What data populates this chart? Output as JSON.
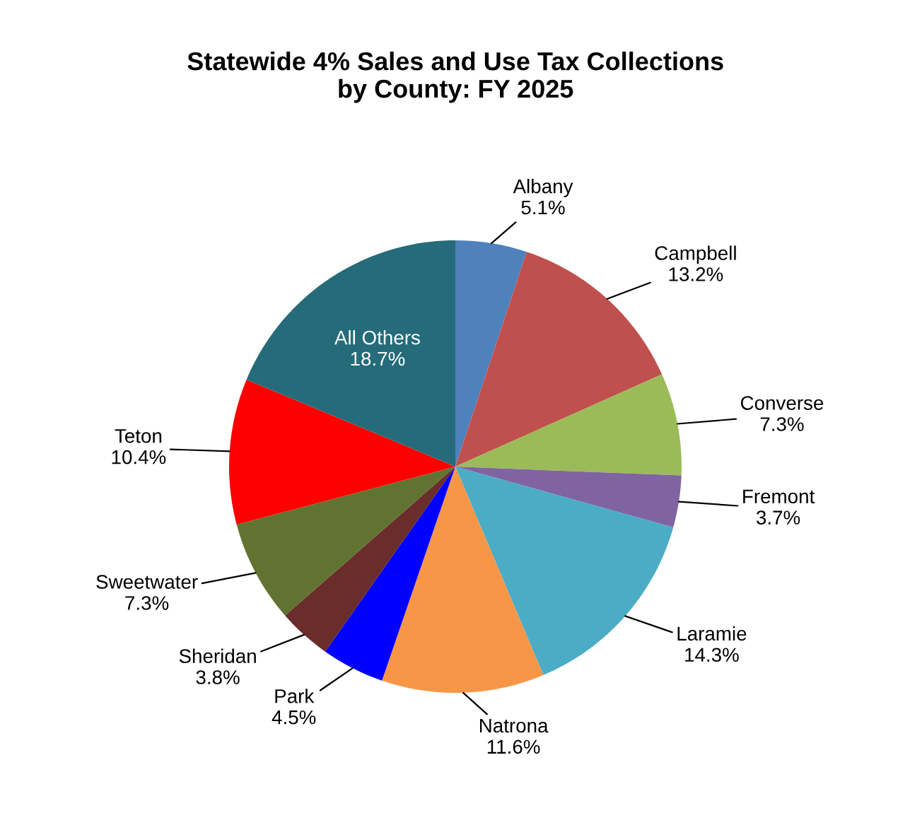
{
  "chart_data": {
    "type": "pie",
    "title": "Statewide 4% Sales and Use Tax Collections\nby County: FY 2025",
    "categories": [
      "Albany",
      "Campbell",
      "Converse",
      "Fremont",
      "Laramie",
      "Natrona",
      "Park",
      "Sheridan",
      "Sweetwater",
      "Teton",
      "All Others"
    ],
    "values": [
      5.1,
      13.2,
      7.3,
      3.7,
      14.3,
      11.6,
      4.5,
      3.8,
      7.3,
      10.4,
      18.7
    ],
    "value_labels": [
      "5.1%",
      "13.2%",
      "7.3%",
      "3.7%",
      "14.3%",
      "11.6%",
      "4.5%",
      "3.8%",
      "7.3%",
      "10.4%",
      "18.7%"
    ],
    "colors": [
      "#4f81bd",
      "#c0504d",
      "#9bbb59",
      "#8064a2",
      "#4bacc6",
      "#f79646",
      "#0000ff",
      "#6b2c2c",
      "#617331",
      "#ff0000",
      "#256b7a"
    ],
    "legend": false
  }
}
